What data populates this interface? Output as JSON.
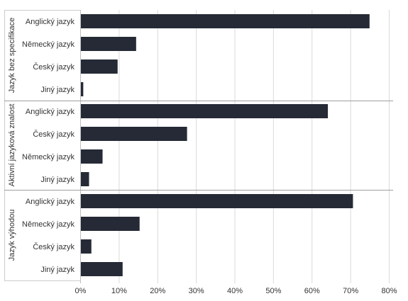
{
  "chart_data": {
    "type": "bar",
    "orientation": "horizontal",
    "title": "",
    "xlabel": "",
    "ylabel": "",
    "xlim": [
      0,
      80
    ],
    "x_ticks": [
      "0%",
      "10%",
      "20%",
      "30%",
      "40%",
      "50%",
      "60%",
      "70%",
      "80%"
    ],
    "grid": true,
    "bar_color": "#252a36",
    "groups": [
      {
        "name": "Jazyk bez specifikace",
        "categories": [
          "Anglický jazyk",
          "Německý jazyk",
          "Český jazyk",
          "Jiný jazyk"
        ],
        "values": [
          75,
          14.5,
          9.7,
          0.8
        ]
      },
      {
        "name": "Aktivní jazyková znalost",
        "categories": [
          "Anglický jazyk",
          "Český jazyk",
          "Německý jazyk",
          "Jiný jazyk"
        ],
        "values": [
          64.2,
          27.7,
          5.8,
          2.3
        ]
      },
      {
        "name": "Jazyk výhodou",
        "categories": [
          "Anglický jazyk",
          "Německý jazyk",
          "Český jazyk",
          "Jiný jazyk"
        ],
        "values": [
          70.7,
          15.4,
          2.9,
          11.0
        ]
      }
    ]
  }
}
